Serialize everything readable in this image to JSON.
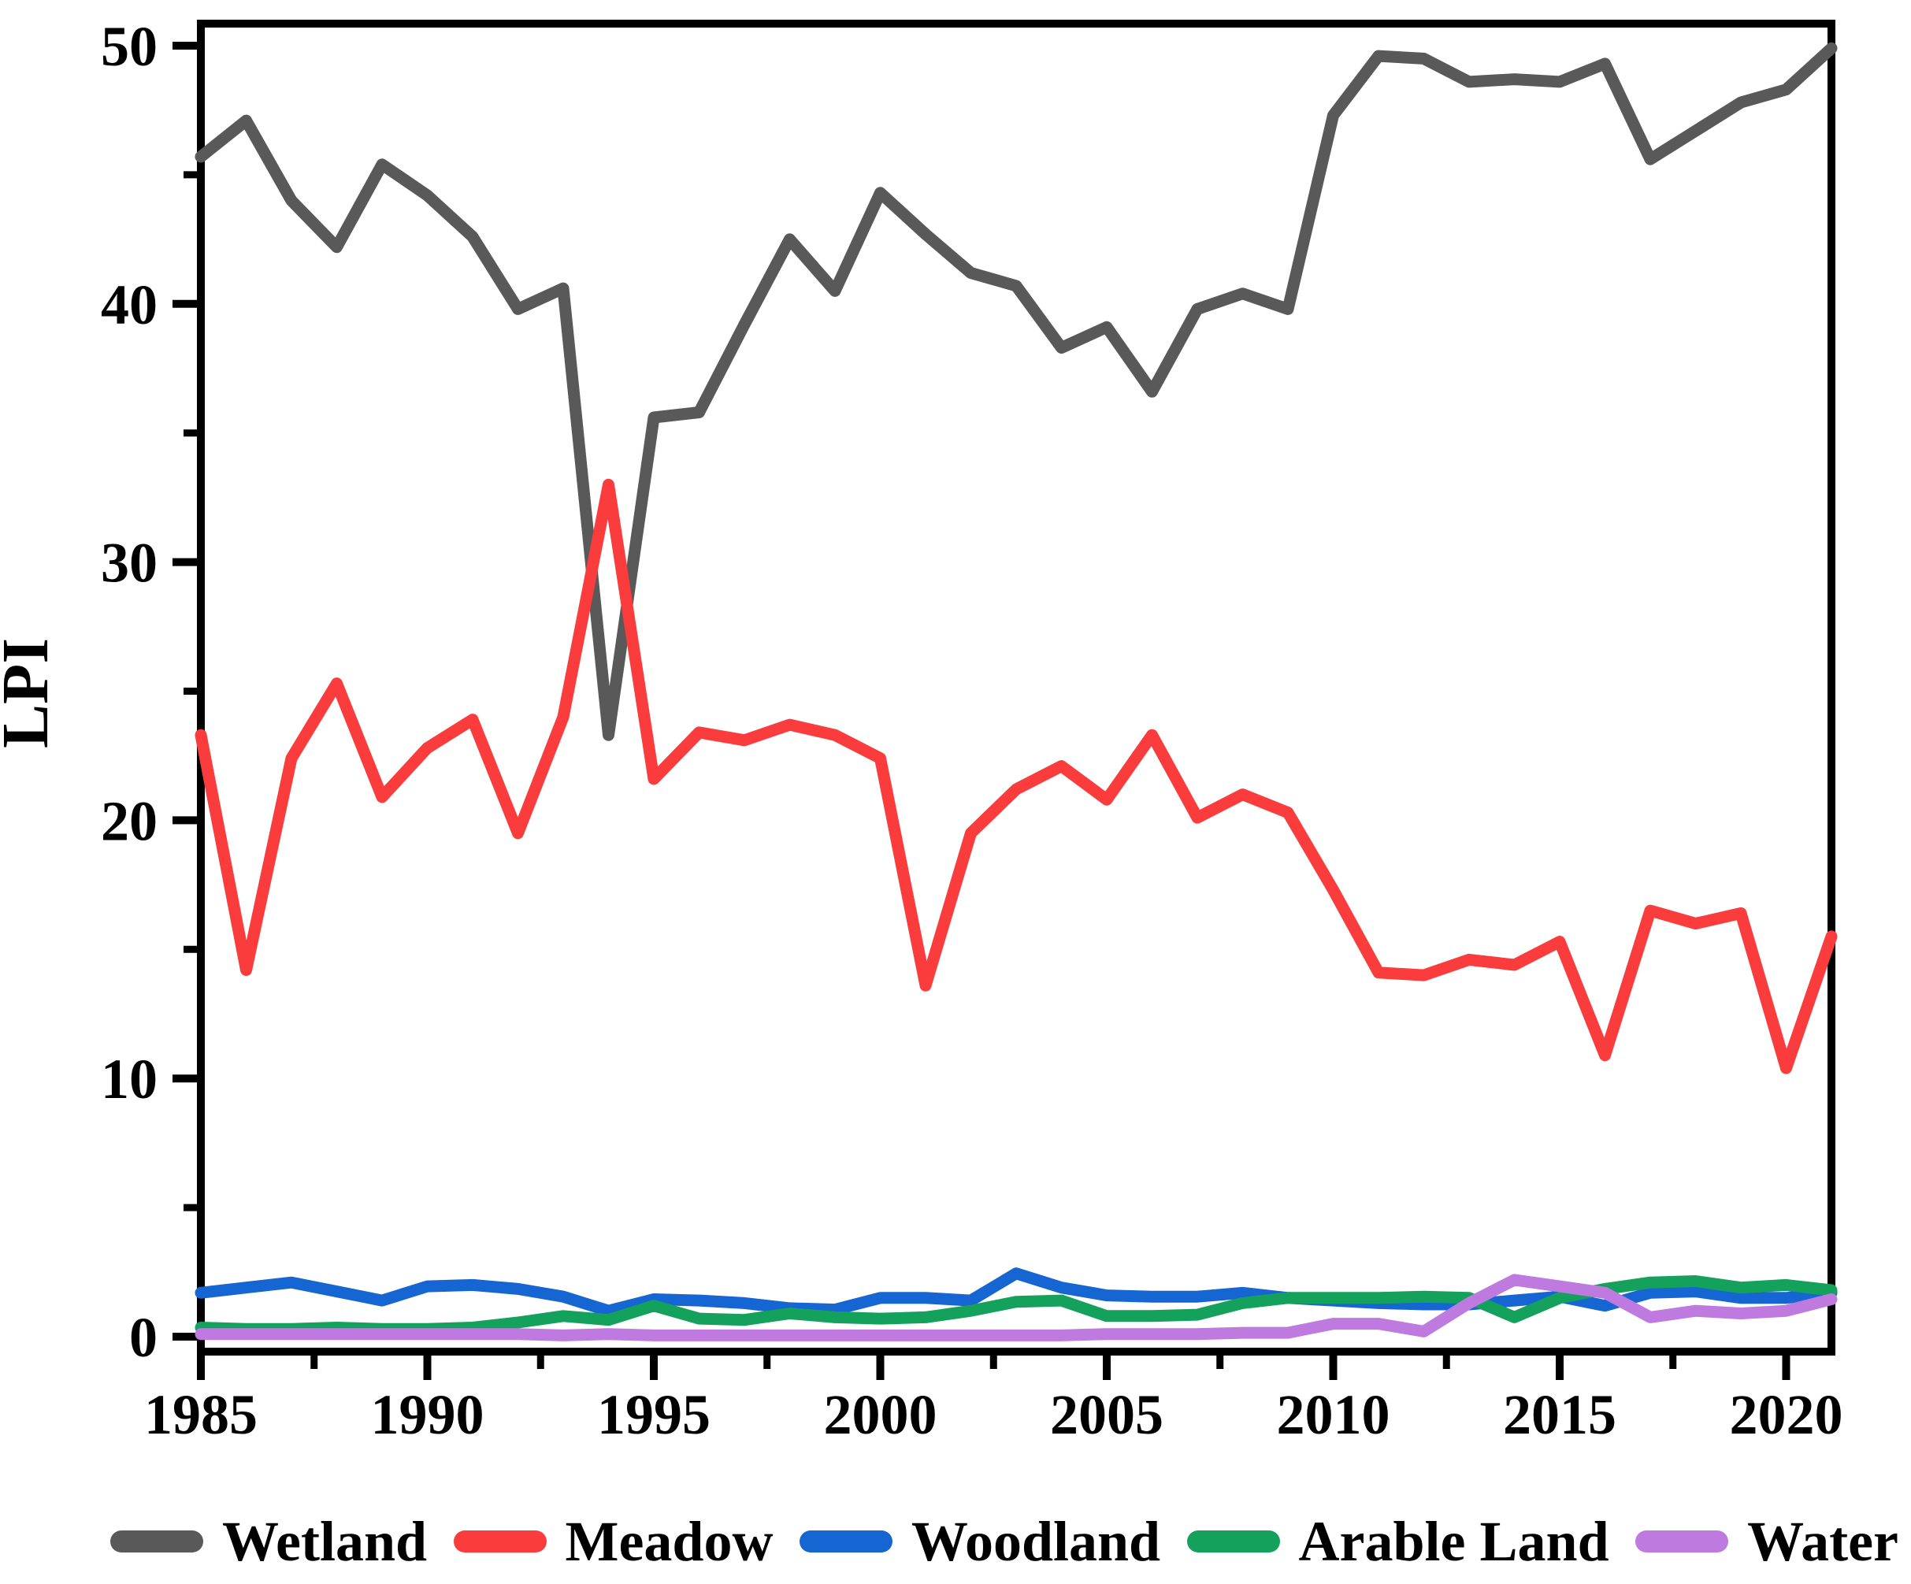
{
  "chart_data": {
    "type": "line",
    "title": "",
    "xlabel": "",
    "ylabel": "LPI",
    "grid": false,
    "legend_position": "bottom",
    "axis_color": "#000000",
    "x_range": [
      1985,
      2021
    ],
    "y_range": [
      0,
      50
    ],
    "x_major_ticks": [
      1985,
      1990,
      1995,
      2000,
      2005,
      2010,
      2015,
      2020
    ],
    "x_minor_ticks": [
      1987.5,
      1992.5,
      1997.5,
      2002.5,
      2007.5,
      2012.5,
      2017.5
    ],
    "y_major_ticks": [
      0,
      10,
      20,
      30,
      40,
      50
    ],
    "y_minor_ticks": [
      5,
      15,
      25,
      35,
      45
    ],
    "x": [
      1985,
      1986,
      1987,
      1988,
      1989,
      1990,
      1991,
      1992,
      1993,
      1994,
      1995,
      1996,
      1997,
      1998,
      1999,
      2000,
      2001,
      2002,
      2003,
      2004,
      2005,
      2006,
      2007,
      2008,
      2009,
      2010,
      2011,
      2012,
      2013,
      2014,
      2015,
      2016,
      2017,
      2018,
      2019,
      2020,
      2021
    ],
    "series": [
      {
        "name": "Wetland",
        "color": "#595959",
        "values": [
          45.7,
          47.1,
          44.0,
          42.2,
          45.4,
          44.2,
          42.6,
          39.8,
          40.6,
          23.3,
          35.6,
          35.8,
          39.2,
          42.5,
          40.5,
          44.3,
          42.7,
          41.2,
          40.7,
          38.3,
          39.1,
          36.6,
          39.8,
          40.4,
          39.8,
          47.3,
          49.6,
          49.5,
          48.6,
          48.7,
          48.6,
          49.3,
          45.6,
          46.7,
          47.8,
          48.3,
          49.9
        ]
      },
      {
        "name": "Meadow",
        "color": "#FA3C3C",
        "values": [
          23.3,
          14.2,
          22.4,
          25.3,
          20.9,
          22.8,
          23.9,
          19.5,
          24.0,
          33.0,
          21.6,
          23.4,
          23.1,
          23.7,
          23.3,
          22.4,
          13.6,
          19.5,
          21.2,
          22.1,
          20.8,
          23.3,
          20.1,
          21.0,
          20.3,
          17.3,
          14.1,
          14.0,
          14.6,
          14.4,
          15.3,
          10.9,
          16.5,
          16.0,
          16.4,
          10.4,
          15.5
        ]
      },
      {
        "name": "Woodland",
        "color": "#1565D2",
        "values": [
          1.7,
          1.9,
          2.1,
          1.75,
          1.4,
          1.95,
          2.0,
          1.85,
          1.55,
          1.0,
          1.45,
          1.4,
          1.3,
          1.1,
          1.05,
          1.5,
          1.5,
          1.4,
          2.45,
          1.9,
          1.6,
          1.55,
          1.55,
          1.7,
          1.5,
          1.4,
          1.3,
          1.25,
          1.25,
          1.4,
          1.55,
          1.2,
          1.7,
          1.75,
          1.5,
          1.5,
          1.7
        ]
      },
      {
        "name": "Arable Land",
        "color": "#14A15C",
        "values": [
          0.35,
          0.3,
          0.3,
          0.35,
          0.3,
          0.3,
          0.35,
          0.55,
          0.8,
          0.65,
          1.2,
          0.7,
          0.65,
          0.9,
          0.75,
          0.7,
          0.75,
          1.0,
          1.35,
          1.4,
          0.8,
          0.8,
          0.85,
          1.3,
          1.5,
          1.5,
          1.5,
          1.55,
          1.5,
          0.75,
          1.5,
          1.85,
          2.1,
          2.15,
          1.9,
          2.0,
          1.8
        ]
      },
      {
        "name": "Water",
        "color": "#BE7ADF",
        "values": [
          0.1,
          0.1,
          0.1,
          0.1,
          0.1,
          0.1,
          0.1,
          0.1,
          0.05,
          0.1,
          0.05,
          0.05,
          0.05,
          0.05,
          0.05,
          0.05,
          0.05,
          0.05,
          0.05,
          0.05,
          0.1,
          0.1,
          0.1,
          0.15,
          0.15,
          0.5,
          0.5,
          0.2,
          1.3,
          2.2,
          1.95,
          1.7,
          0.75,
          1.0,
          0.9,
          1.0,
          1.45
        ]
      }
    ]
  }
}
